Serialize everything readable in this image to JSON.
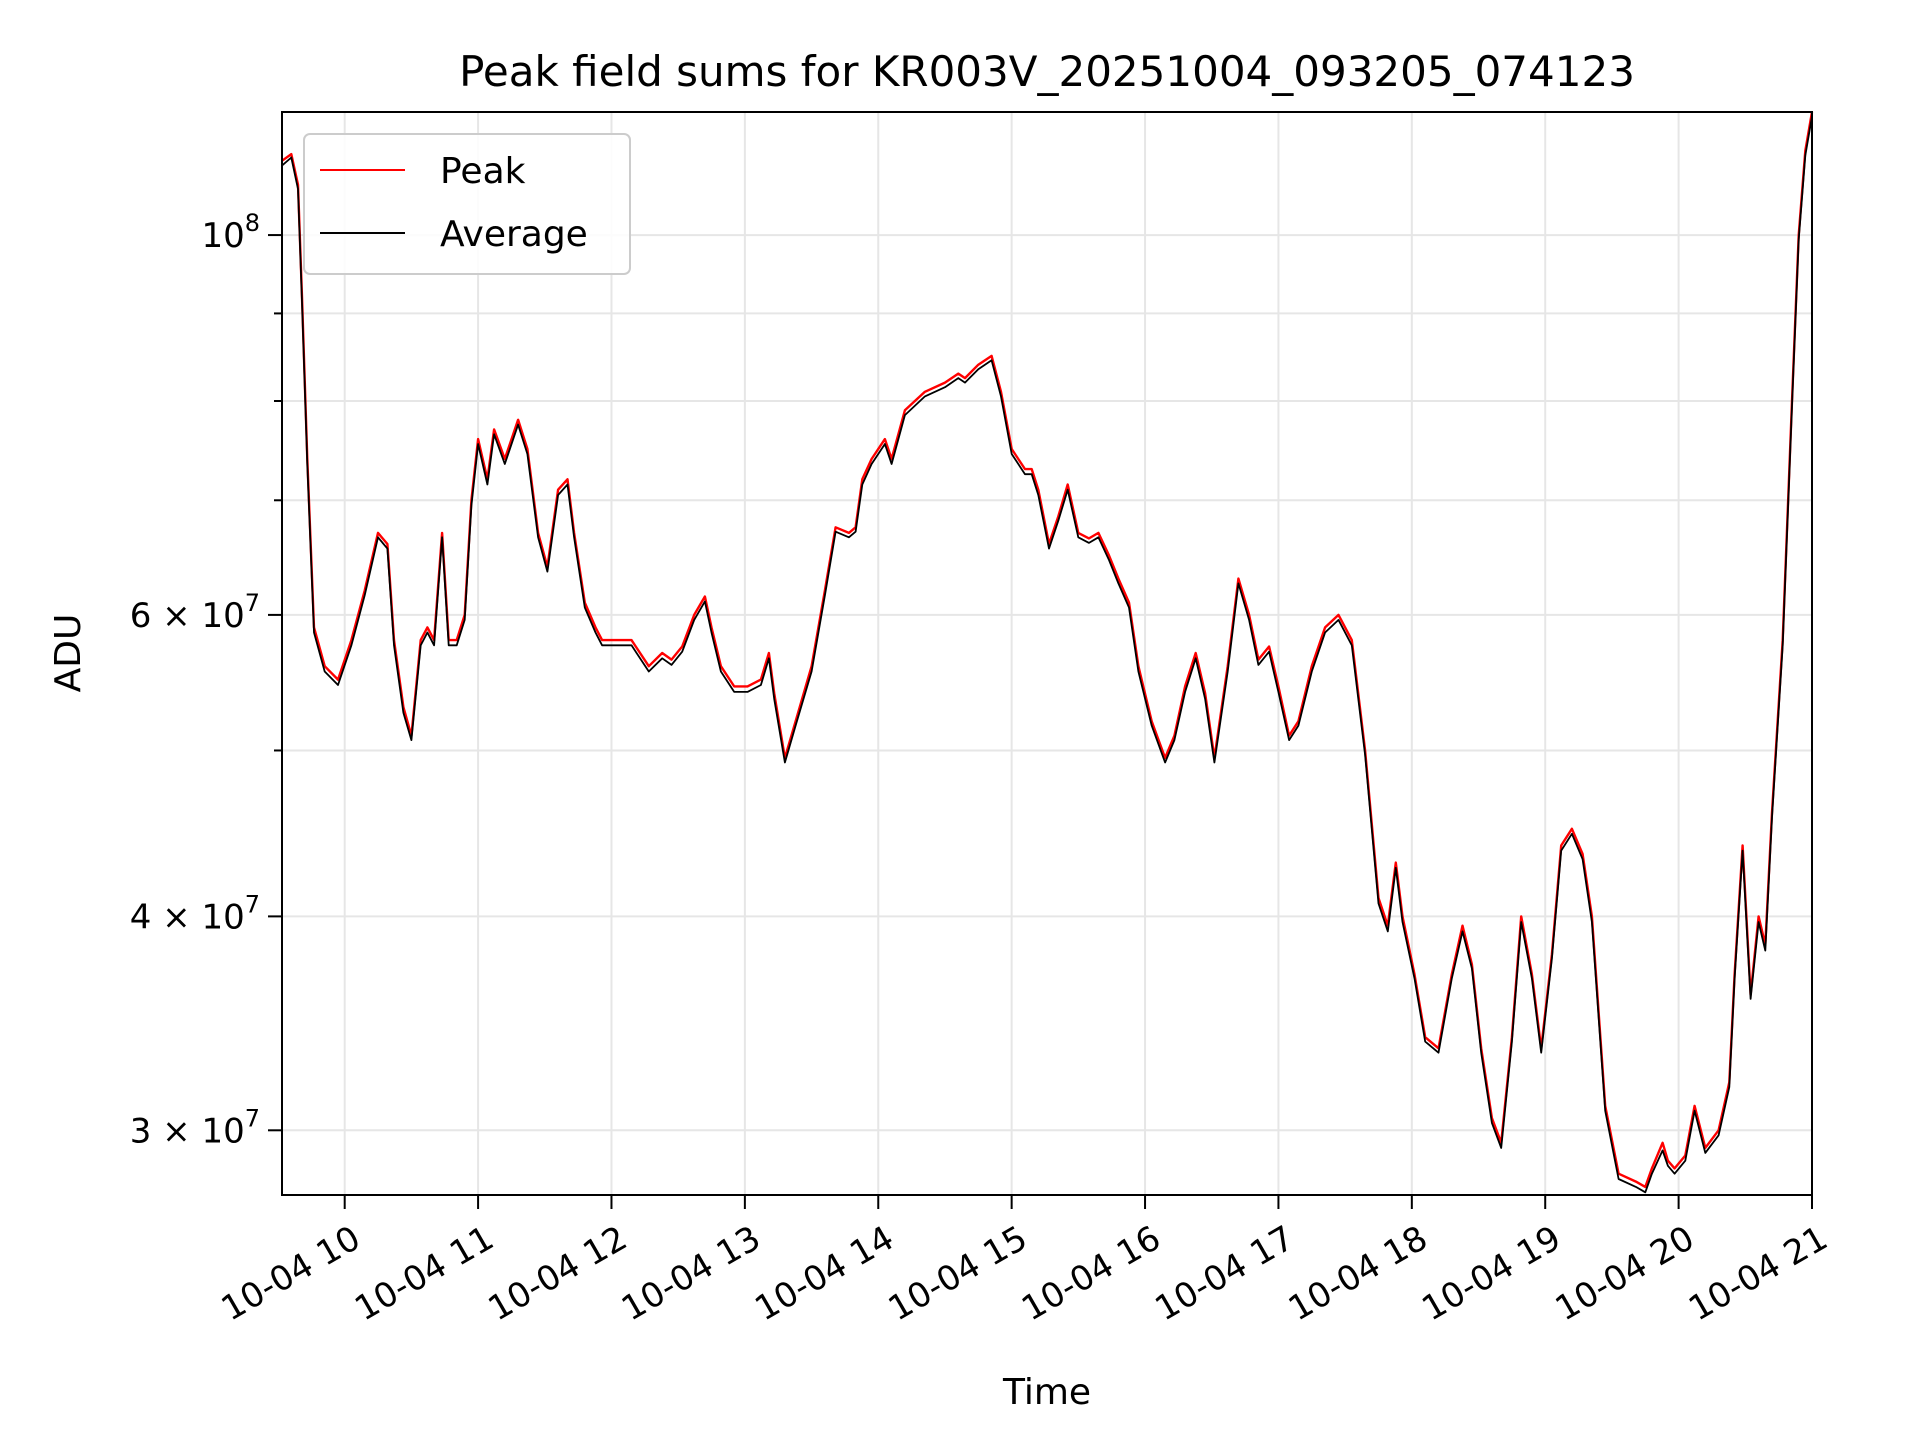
{
  "chart_data": {
    "type": "line",
    "title": "Peak field sums for KR003V_20251004_093205_074123",
    "xlabel": "Time",
    "ylabel": "ADU",
    "yscale": "log",
    "ylim": [
      27500000,
      118000000
    ],
    "xlim": [
      9.53,
      21.0
    ],
    "grid": true,
    "legend_position": "top-left",
    "x_tick_values": [
      10,
      11,
      12,
      13,
      14,
      15,
      16,
      17,
      18,
      19,
      20,
      21
    ],
    "x_tick_labels": [
      "10-04 10",
      "10-04 11",
      "10-04 12",
      "10-04 13",
      "10-04 14",
      "10-04 15",
      "10-04 16",
      "10-04 17",
      "10-04 18",
      "10-04 19",
      "10-04 20",
      "10-04 21"
    ],
    "y_ticks": [
      {
        "value": 100000000,
        "mant": "",
        "base": "10",
        "exp": "8"
      },
      {
        "value": 60000000,
        "mant": "6 × ",
        "base": "10",
        "exp": "7"
      },
      {
        "value": 40000000,
        "mant": "4 × ",
        "base": "10",
        "exp": "7"
      },
      {
        "value": 30000000,
        "mant": "3 × ",
        "base": "10",
        "exp": "7"
      }
    ],
    "y_minor_gridlines": [
      50000000,
      70000000,
      80000000,
      90000000
    ],
    "x_unit": "hour of day (2025-10-04)",
    "series": [
      {
        "name": "Peak",
        "color": "#ff0000",
        "points": [
          [
            9.53,
            110.5
          ],
          [
            9.6,
            111.5
          ],
          [
            9.65,
            107
          ],
          [
            9.68,
            92
          ],
          [
            9.72,
            74
          ],
          [
            9.77,
            59
          ],
          [
            9.85,
            56
          ],
          [
            9.95,
            55
          ],
          [
            10.05,
            58
          ],
          [
            10.15,
            62
          ],
          [
            10.25,
            67
          ],
          [
            10.32,
            66
          ],
          [
            10.37,
            58
          ],
          [
            10.44,
            53
          ],
          [
            10.5,
            51
          ],
          [
            10.57,
            58
          ],
          [
            10.62,
            59
          ],
          [
            10.67,
            58
          ],
          [
            10.73,
            67
          ],
          [
            10.78,
            58
          ],
          [
            10.84,
            58
          ],
          [
            10.9,
            60
          ],
          [
            10.95,
            70
          ],
          [
            11.0,
            76
          ],
          [
            11.07,
            72
          ],
          [
            11.12,
            77
          ],
          [
            11.2,
            74
          ],
          [
            11.3,
            78
          ],
          [
            11.37,
            75
          ],
          [
            11.45,
            67
          ],
          [
            11.52,
            64
          ],
          [
            11.6,
            71
          ],
          [
            11.67,
            72
          ],
          [
            11.72,
            67
          ],
          [
            11.8,
            61
          ],
          [
            11.88,
            59
          ],
          [
            11.93,
            58
          ],
          [
            12.05,
            58
          ],
          [
            12.15,
            58
          ],
          [
            12.28,
            56
          ],
          [
            12.38,
            57
          ],
          [
            12.45,
            56.5
          ],
          [
            12.53,
            57.5
          ],
          [
            12.62,
            60
          ],
          [
            12.7,
            61.5
          ],
          [
            12.75,
            59
          ],
          [
            12.82,
            56
          ],
          [
            12.92,
            54.5
          ],
          [
            13.02,
            54.5
          ],
          [
            13.12,
            55
          ],
          [
            13.18,
            57
          ],
          [
            13.22,
            54
          ],
          [
            13.3,
            49.5
          ],
          [
            13.38,
            52
          ],
          [
            13.5,
            56
          ],
          [
            13.6,
            62
          ],
          [
            13.68,
            67.5
          ],
          [
            13.78,
            67
          ],
          [
            13.83,
            67.5
          ],
          [
            13.88,
            72
          ],
          [
            13.95,
            74
          ],
          [
            14.05,
            76
          ],
          [
            14.1,
            74
          ],
          [
            14.2,
            79
          ],
          [
            14.35,
            81
          ],
          [
            14.5,
            82
          ],
          [
            14.6,
            83
          ],
          [
            14.65,
            82.5
          ],
          [
            14.75,
            84
          ],
          [
            14.85,
            85
          ],
          [
            14.92,
            81
          ],
          [
            15.0,
            75
          ],
          [
            15.1,
            73
          ],
          [
            15.15,
            73
          ],
          [
            15.2,
            71
          ],
          [
            15.28,
            66
          ],
          [
            15.35,
            68.5
          ],
          [
            15.42,
            71.5
          ],
          [
            15.5,
            67
          ],
          [
            15.58,
            66.5
          ],
          [
            15.65,
            67
          ],
          [
            15.73,
            65
          ],
          [
            15.8,
            63
          ],
          [
            15.88,
            61
          ],
          [
            15.95,
            56
          ],
          [
            16.05,
            52
          ],
          [
            16.15,
            49.5
          ],
          [
            16.22,
            51
          ],
          [
            16.3,
            54.5
          ],
          [
            16.38,
            57
          ],
          [
            16.45,
            54
          ],
          [
            16.52,
            49.5
          ],
          [
            16.62,
            56
          ],
          [
            16.7,
            63
          ],
          [
            16.78,
            60
          ],
          [
            16.85,
            56.5
          ],
          [
            16.93,
            57.5
          ],
          [
            17.0,
            54.5
          ],
          [
            17.08,
            51
          ],
          [
            17.15,
            52
          ],
          [
            17.25,
            56
          ],
          [
            17.35,
            59
          ],
          [
            17.45,
            60
          ],
          [
            17.55,
            58
          ],
          [
            17.65,
            50
          ],
          [
            17.75,
            41
          ],
          [
            17.82,
            39.5
          ],
          [
            17.88,
            43
          ],
          [
            17.93,
            40
          ],
          [
            18.02,
            37
          ],
          [
            18.1,
            34
          ],
          [
            18.2,
            33.5
          ],
          [
            18.3,
            37
          ],
          [
            18.38,
            39.5
          ],
          [
            18.45,
            37.5
          ],
          [
            18.52,
            33.5
          ],
          [
            18.6,
            30.5
          ],
          [
            18.67,
            29.5
          ],
          [
            18.75,
            34
          ],
          [
            18.82,
            40
          ],
          [
            18.9,
            37
          ],
          [
            18.97,
            33.5
          ],
          [
            19.05,
            38
          ],
          [
            19.12,
            44
          ],
          [
            19.2,
            45
          ],
          [
            19.28,
            43.5
          ],
          [
            19.35,
            40
          ],
          [
            19.45,
            31
          ],
          [
            19.55,
            28.3
          ],
          [
            19.68,
            28
          ],
          [
            19.75,
            27.8
          ],
          [
            19.8,
            28.5
          ],
          [
            19.88,
            29.5
          ],
          [
            19.92,
            28.8
          ],
          [
            19.97,
            28.5
          ],
          [
            20.05,
            29
          ],
          [
            20.12,
            31
          ],
          [
            20.2,
            29.3
          ],
          [
            20.3,
            30
          ],
          [
            20.38,
            32
          ],
          [
            20.42,
            37
          ],
          [
            20.48,
            44
          ],
          [
            20.54,
            36
          ],
          [
            20.6,
            40
          ],
          [
            20.65,
            38.5
          ],
          [
            20.7,
            46
          ],
          [
            20.78,
            58
          ],
          [
            20.85,
            80
          ],
          [
            20.9,
            100
          ],
          [
            20.95,
            112
          ],
          [
            21.0,
            118
          ]
        ]
      },
      {
        "name": "Average",
        "color": "#000000",
        "points": [
          [
            9.53,
            109.8
          ],
          [
            9.6,
            111
          ],
          [
            9.65,
            106.4
          ],
          [
            9.68,
            91.4
          ],
          [
            9.72,
            73.5
          ],
          [
            9.77,
            58.6
          ],
          [
            9.85,
            55.6
          ],
          [
            9.95,
            54.6
          ],
          [
            10.05,
            57.6
          ],
          [
            10.15,
            61.6
          ],
          [
            10.25,
            66.6
          ],
          [
            10.32,
            65.6
          ],
          [
            10.37,
            57.6
          ],
          [
            10.44,
            52.6
          ],
          [
            10.5,
            50.7
          ],
          [
            10.57,
            57.6
          ],
          [
            10.62,
            58.6
          ],
          [
            10.67,
            57.6
          ],
          [
            10.73,
            66.6
          ],
          [
            10.78,
            57.6
          ],
          [
            10.84,
            57.6
          ],
          [
            10.9,
            59.6
          ],
          [
            10.95,
            69.5
          ],
          [
            11.0,
            75.5
          ],
          [
            11.07,
            71.5
          ],
          [
            11.12,
            76.5
          ],
          [
            11.2,
            73.5
          ],
          [
            11.3,
            77.5
          ],
          [
            11.37,
            74.5
          ],
          [
            11.45,
            66.6
          ],
          [
            11.52,
            63.6
          ],
          [
            11.6,
            70.5
          ],
          [
            11.67,
            71.5
          ],
          [
            11.72,
            66.6
          ],
          [
            11.8,
            60.6
          ],
          [
            11.88,
            58.6
          ],
          [
            11.93,
            57.6
          ],
          [
            12.05,
            57.6
          ],
          [
            12.15,
            57.6
          ],
          [
            12.28,
            55.6
          ],
          [
            12.38,
            56.6
          ],
          [
            12.45,
            56.1
          ],
          [
            12.53,
            57.1
          ],
          [
            12.62,
            59.6
          ],
          [
            12.7,
            61.1
          ],
          [
            12.75,
            58.6
          ],
          [
            12.82,
            55.6
          ],
          [
            12.92,
            54.1
          ],
          [
            13.02,
            54.1
          ],
          [
            13.12,
            54.6
          ],
          [
            13.18,
            56.6
          ],
          [
            13.22,
            53.6
          ],
          [
            13.3,
            49.2
          ],
          [
            13.38,
            51.7
          ],
          [
            13.5,
            55.6
          ],
          [
            13.6,
            61.6
          ],
          [
            13.68,
            67.1
          ],
          [
            13.78,
            66.6
          ],
          [
            13.83,
            67.1
          ],
          [
            13.88,
            71.5
          ],
          [
            13.95,
            73.5
          ],
          [
            14.05,
            75.5
          ],
          [
            14.1,
            73.5
          ],
          [
            14.2,
            78.5
          ],
          [
            14.35,
            80.5
          ],
          [
            14.5,
            81.5
          ],
          [
            14.6,
            82.5
          ],
          [
            14.65,
            82
          ],
          [
            14.75,
            83.5
          ],
          [
            14.85,
            84.5
          ],
          [
            14.92,
            80.5
          ],
          [
            15.0,
            74.5
          ],
          [
            15.1,
            72.5
          ],
          [
            15.15,
            72.5
          ],
          [
            15.2,
            70.5
          ],
          [
            15.28,
            65.6
          ],
          [
            15.35,
            68.1
          ],
          [
            15.42,
            71
          ],
          [
            15.5,
            66.6
          ],
          [
            15.58,
            66.1
          ],
          [
            15.65,
            66.6
          ],
          [
            15.73,
            64.6
          ],
          [
            15.8,
            62.6
          ],
          [
            15.88,
            60.6
          ],
          [
            15.95,
            55.6
          ],
          [
            16.05,
            51.7
          ],
          [
            16.15,
            49.2
          ],
          [
            16.22,
            50.7
          ],
          [
            16.3,
            54.1
          ],
          [
            16.38,
            56.6
          ],
          [
            16.45,
            53.6
          ],
          [
            16.52,
            49.2
          ],
          [
            16.62,
            55.6
          ],
          [
            16.7,
            62.6
          ],
          [
            16.78,
            59.6
          ],
          [
            16.85,
            56.1
          ],
          [
            16.93,
            57.1
          ],
          [
            17.0,
            54.1
          ],
          [
            17.08,
            50.7
          ],
          [
            17.15,
            51.7
          ],
          [
            17.25,
            55.6
          ],
          [
            17.35,
            58.6
          ],
          [
            17.45,
            59.6
          ],
          [
            17.55,
            57.6
          ],
          [
            17.65,
            49.7
          ],
          [
            17.75,
            40.7
          ],
          [
            17.82,
            39.2
          ],
          [
            17.88,
            42.7
          ],
          [
            17.93,
            39.7
          ],
          [
            18.02,
            36.8
          ],
          [
            18.1,
            33.8
          ],
          [
            18.2,
            33.3
          ],
          [
            18.3,
            36.8
          ],
          [
            18.38,
            39.2
          ],
          [
            18.45,
            37.3
          ],
          [
            18.52,
            33.3
          ],
          [
            18.6,
            30.3
          ],
          [
            18.67,
            29.3
          ],
          [
            18.75,
            33.8
          ],
          [
            18.82,
            39.7
          ],
          [
            18.9,
            36.8
          ],
          [
            18.97,
            33.3
          ],
          [
            19.05,
            37.8
          ],
          [
            19.12,
            43.7
          ],
          [
            19.2,
            44.7
          ],
          [
            19.28,
            43.2
          ],
          [
            19.35,
            39.7
          ],
          [
            19.45,
            30.8
          ],
          [
            19.55,
            28.1
          ],
          [
            19.68,
            27.8
          ],
          [
            19.75,
            27.6
          ],
          [
            19.8,
            28.3
          ],
          [
            19.88,
            29.2
          ],
          [
            19.92,
            28.6
          ],
          [
            19.97,
            28.3
          ],
          [
            20.05,
            28.8
          ],
          [
            20.12,
            30.8
          ],
          [
            20.2,
            29.1
          ],
          [
            20.3,
            29.8
          ],
          [
            20.38,
            31.8
          ],
          [
            20.42,
            36.8
          ],
          [
            20.48,
            43.7
          ],
          [
            20.54,
            35.8
          ],
          [
            20.6,
            39.7
          ],
          [
            20.65,
            38.2
          ],
          [
            20.7,
            45.7
          ],
          [
            20.78,
            57.6
          ],
          [
            20.85,
            79.5
          ],
          [
            20.9,
            99.4
          ],
          [
            20.95,
            111.3
          ],
          [
            21.0,
            117.3
          ]
        ]
      }
    ],
    "series_value_unit": "millions of ADU"
  }
}
